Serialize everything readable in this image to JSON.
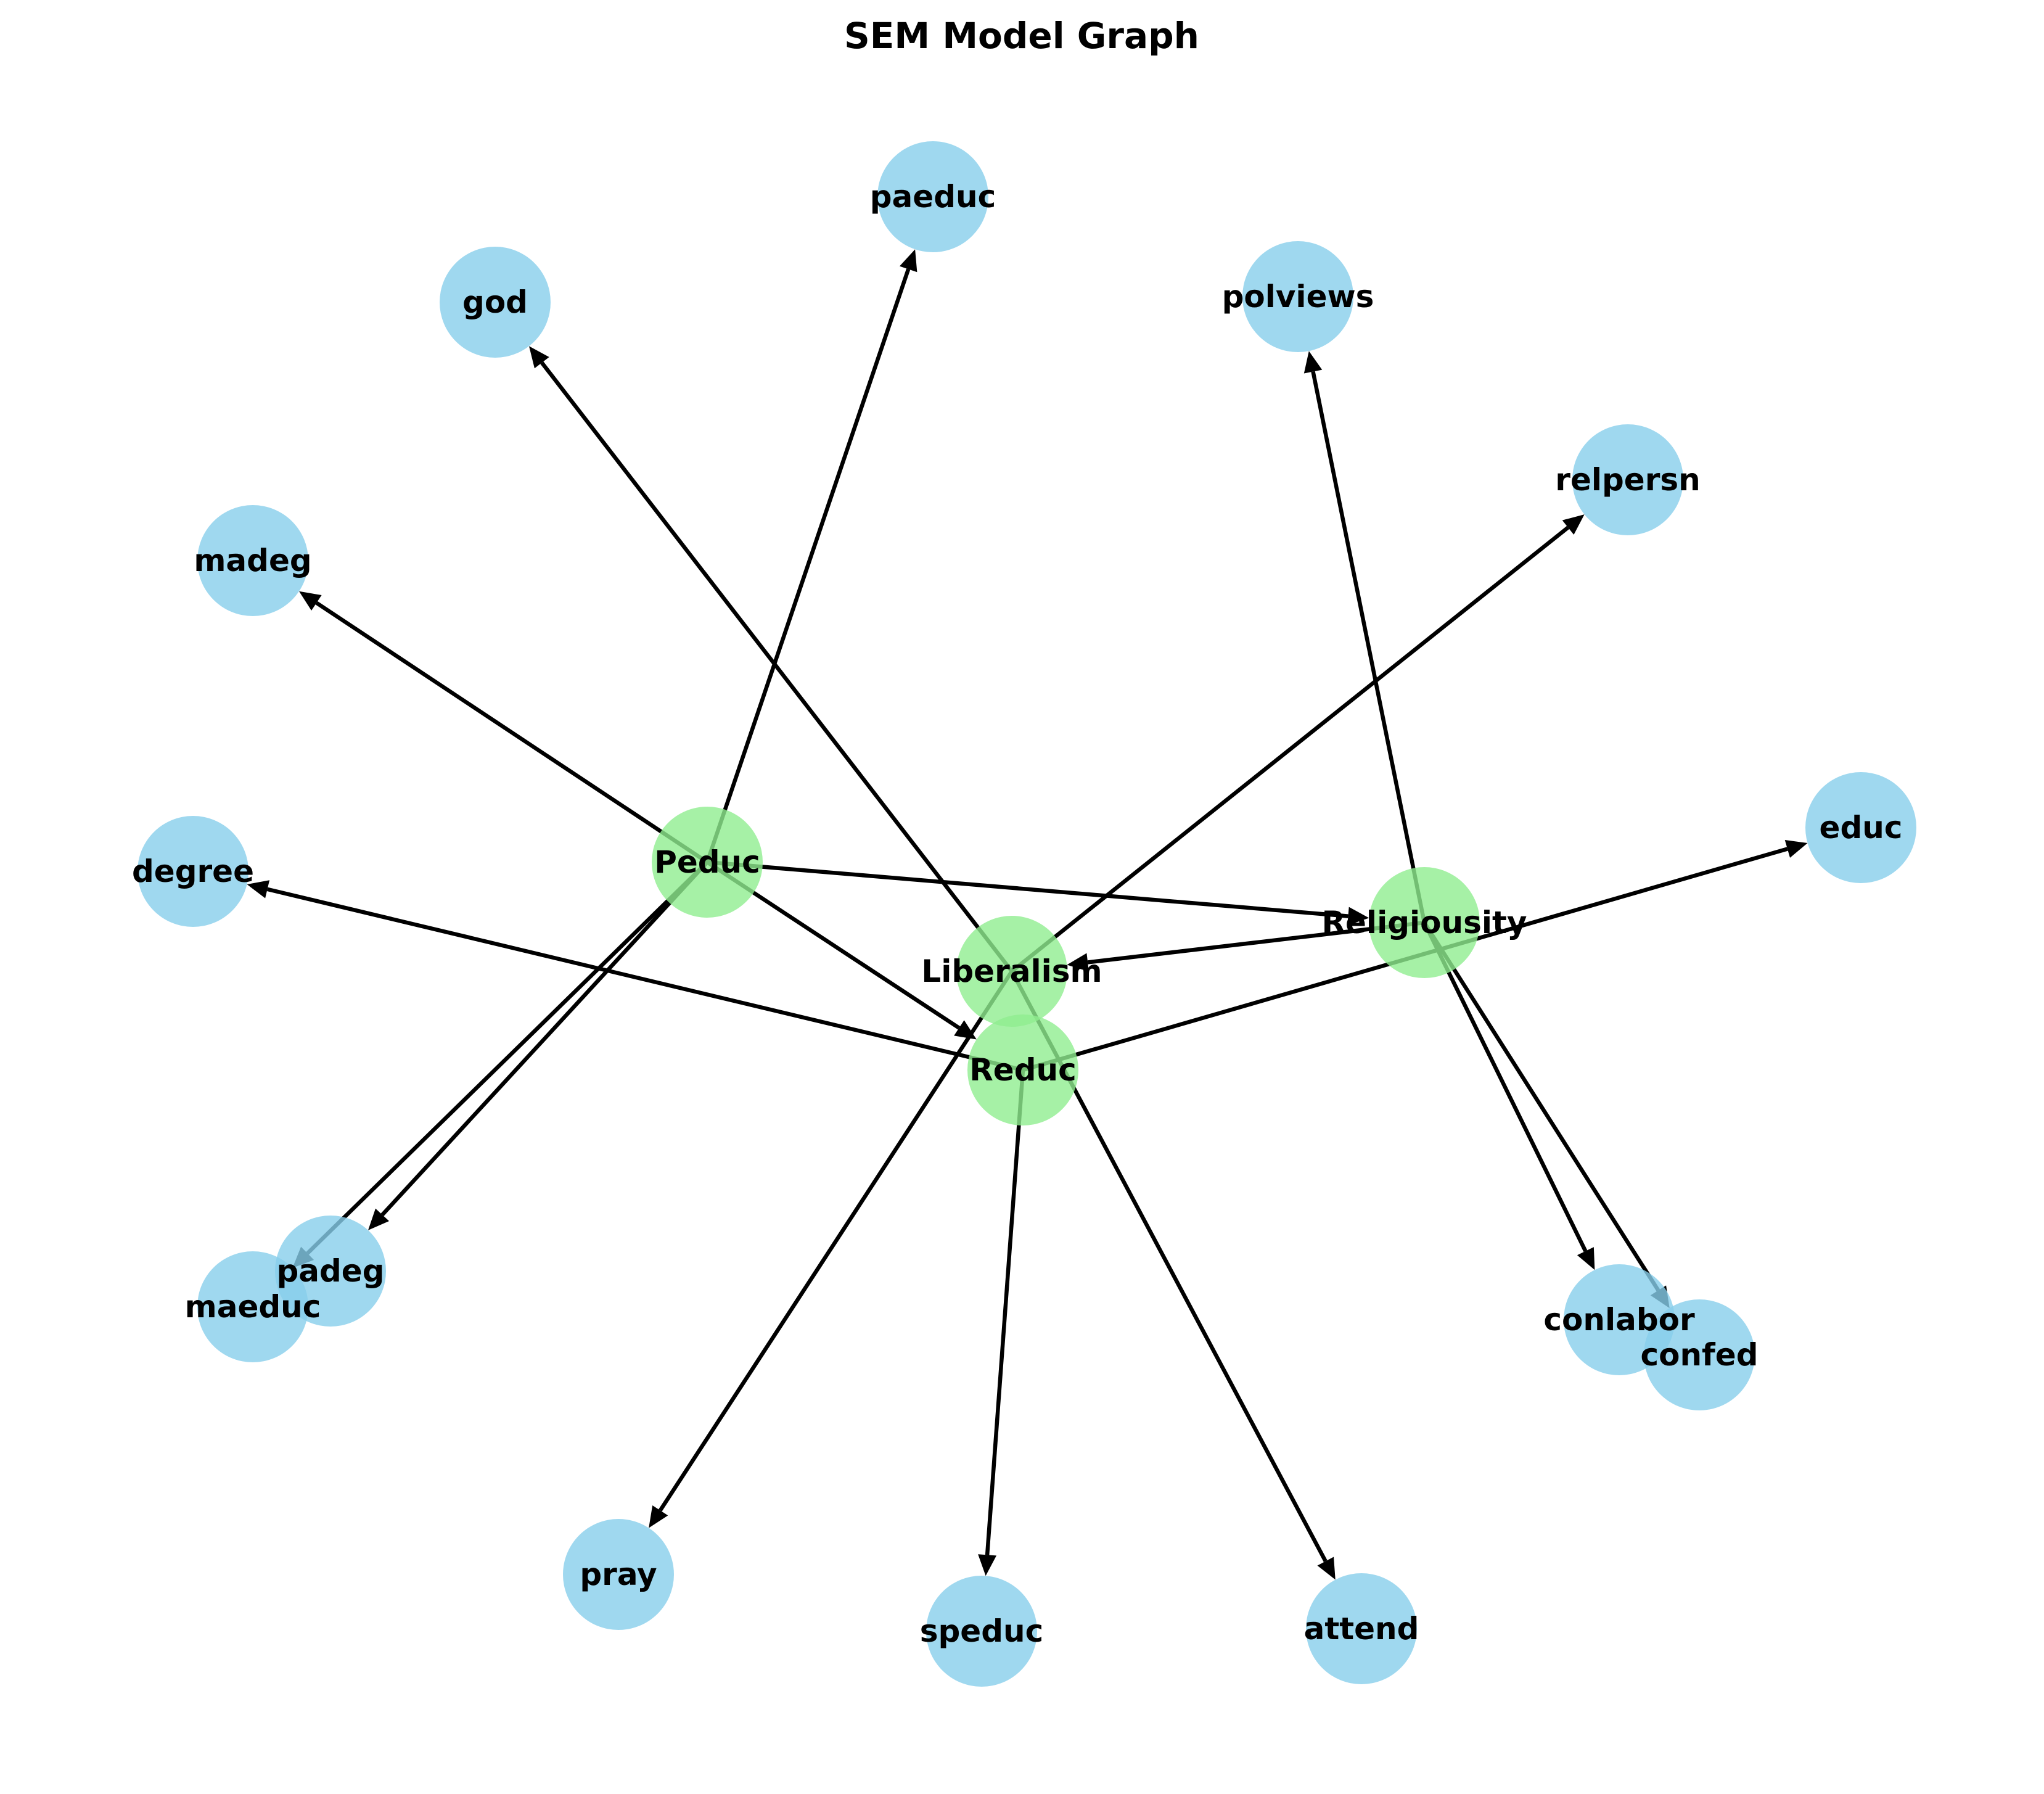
{
  "title": "SEM Model Graph",
  "colors": {
    "latent": "#90EE90",
    "observed": "#87CEEB",
    "edge": "#000000"
  },
  "nodes": [
    {
      "id": "Peduc",
      "label": "Peduc",
      "kind": "latent"
    },
    {
      "id": "Liberalism",
      "label": "Liberalism",
      "kind": "latent"
    },
    {
      "id": "Religiousity",
      "label": "Religiousity",
      "kind": "latent"
    },
    {
      "id": "Reduc",
      "label": "Reduc",
      "kind": "latent"
    },
    {
      "id": "paeduc",
      "label": "paeduc",
      "kind": "observed"
    },
    {
      "id": "god",
      "label": "god",
      "kind": "observed"
    },
    {
      "id": "polviews",
      "label": "polviews",
      "kind": "observed"
    },
    {
      "id": "relpersn",
      "label": "relpersn",
      "kind": "observed"
    },
    {
      "id": "madeg",
      "label": "madeg",
      "kind": "observed"
    },
    {
      "id": "degree",
      "label": "degree",
      "kind": "observed"
    },
    {
      "id": "educ",
      "label": "educ",
      "kind": "observed"
    },
    {
      "id": "padeg",
      "label": "padeg",
      "kind": "observed"
    },
    {
      "id": "maeduc",
      "label": "maeduc",
      "kind": "observed"
    },
    {
      "id": "conlabor",
      "label": "conlabor",
      "kind": "observed"
    },
    {
      "id": "confed",
      "label": "confed",
      "kind": "observed"
    },
    {
      "id": "pray",
      "label": "pray",
      "kind": "observed"
    },
    {
      "id": "speduc",
      "label": "speduc",
      "kind": "observed"
    },
    {
      "id": "attend",
      "label": "attend",
      "kind": "observed"
    }
  ],
  "edges": [
    {
      "from": "Peduc",
      "to": "paeduc"
    },
    {
      "from": "Peduc",
      "to": "madeg"
    },
    {
      "from": "Peduc",
      "to": "padeg"
    },
    {
      "from": "Peduc",
      "to": "maeduc"
    },
    {
      "from": "Peduc",
      "to": "Reduc"
    },
    {
      "from": "Peduc",
      "to": "Religiousity"
    },
    {
      "from": "Liberalism",
      "to": "god"
    },
    {
      "from": "Liberalism",
      "to": "relpersn"
    },
    {
      "from": "Liberalism",
      "to": "pray"
    },
    {
      "from": "Liberalism",
      "to": "attend"
    },
    {
      "from": "Religiousity",
      "to": "Liberalism"
    },
    {
      "from": "Religiousity",
      "to": "polviews"
    },
    {
      "from": "Religiousity",
      "to": "conlabor"
    },
    {
      "from": "Religiousity",
      "to": "confed"
    },
    {
      "from": "Reduc",
      "to": "degree"
    },
    {
      "from": "Reduc",
      "to": "educ"
    },
    {
      "from": "Reduc",
      "to": "speduc"
    }
  ]
}
